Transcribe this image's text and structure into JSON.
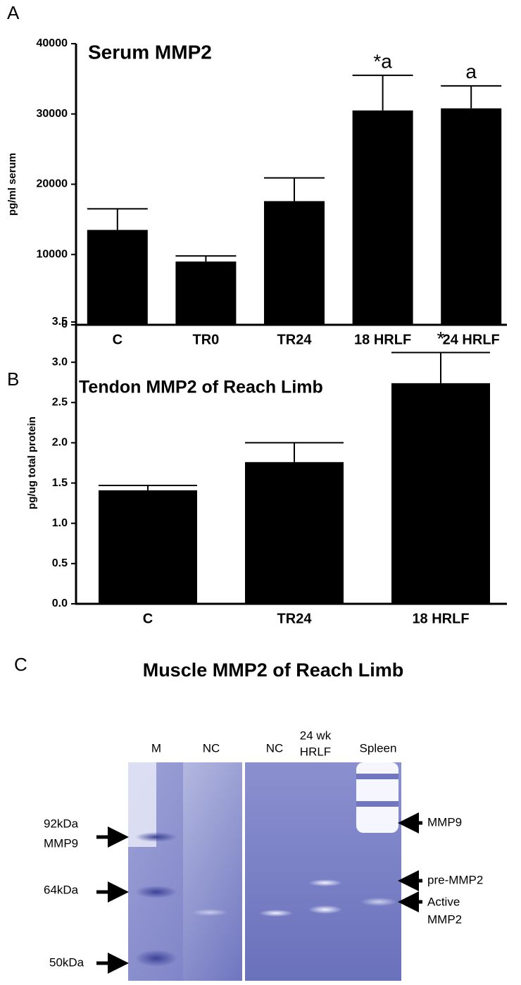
{
  "chart_data": [
    {
      "type": "bar",
      "panel_label": "A",
      "title": "Serum MMP2",
      "ylabel": "pg/ml serum",
      "categories": [
        "C",
        "TR0",
        "TR24",
        "18 HRLF",
        "24 HRLF"
      ],
      "values": [
        13500,
        9000,
        17600,
        30500,
        30800
      ],
      "errors": [
        3000,
        800,
        3300,
        5000,
        3200
      ],
      "annotations": [
        null,
        null,
        null,
        "*a",
        "a"
      ],
      "color": "#000000",
      "ylim": [
        0,
        40000
      ],
      "yticks": [
        0,
        10000,
        20000,
        30000,
        40000
      ]
    },
    {
      "type": "bar",
      "panel_label": "B",
      "title": "Tendon MMP2 of Reach Limb",
      "ylabel": "pg/ug total protein",
      "categories": [
        "C",
        "TR24",
        "18 HRLF"
      ],
      "values": [
        1.41,
        1.76,
        2.74
      ],
      "errors": [
        0.06,
        0.24,
        0.38
      ],
      "annotations": [
        null,
        null,
        "*"
      ],
      "color": "#000000",
      "ylim": [
        0,
        3.5
      ],
      "yticks": [
        {
          "value": 0,
          "label": "0.0"
        },
        {
          "value": 0.5,
          "label": "0.5"
        },
        {
          "value": 1,
          "label": "1.0"
        },
        {
          "value": 1.5,
          "label": "1.5"
        },
        {
          "value": 2,
          "label": "2.0"
        },
        {
          "value": 2.5,
          "label": "2.5"
        },
        {
          "value": 3,
          "label": "3.0"
        },
        {
          "value": 3.5,
          "label": "3.5"
        }
      ]
    }
  ],
  "gel": {
    "panel_label": "C",
    "title": "Muscle MMP2 of Reach Limb",
    "lanes": [
      "M",
      "NC",
      "NC",
      "24 wk",
      "HRLF",
      "Spleen"
    ],
    "left_markers": [
      "92kDa",
      "MMP9",
      "64kDa",
      "50kDa"
    ],
    "right_markers": [
      "MMP9",
      "pre-MMP2",
      "Active",
      "MMP2"
    ]
  }
}
